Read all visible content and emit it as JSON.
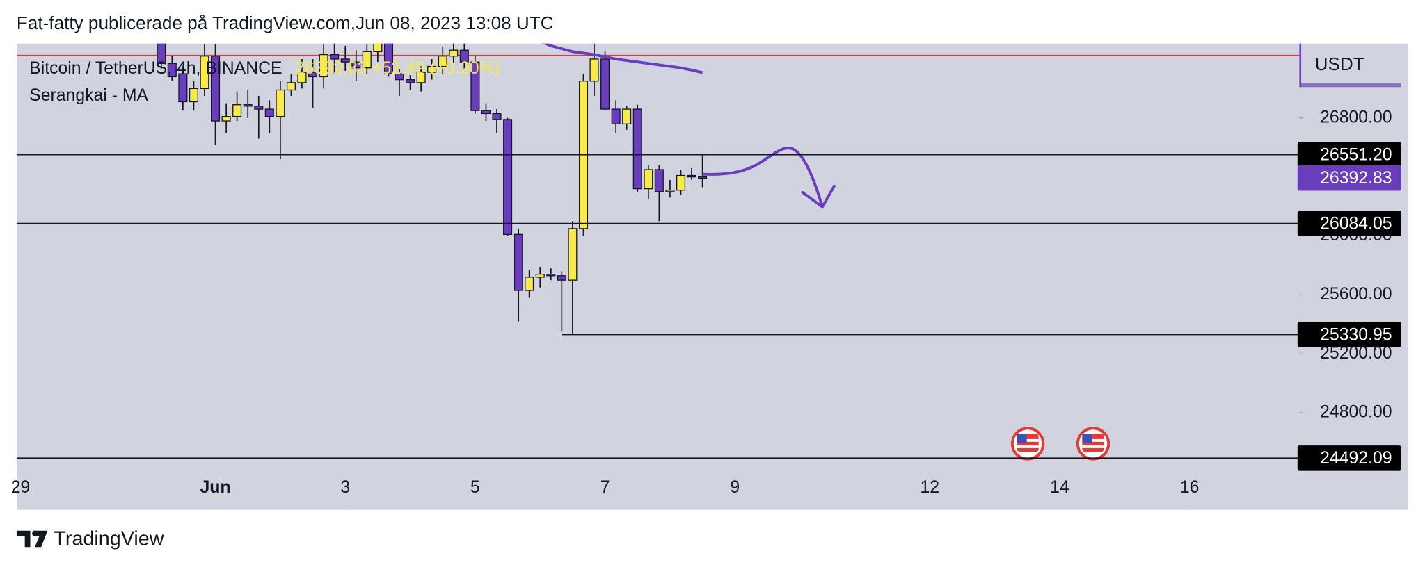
{
  "chart_data": {
    "type": "candlestick",
    "title": "Fat-fatty publicerade på TradingView.com,Jun 08, 2023 13:08 UTC",
    "symbol": "Bitcoin / TetherUS, 4h, BINANCE",
    "ohlc_text": "26392.83 +52.49 (+0.20%)",
    "indicator": "Serangkai - MA",
    "currency": "USDT",
    "footer": "TradingView",
    "x": [
      0.167,
      0.333,
      0.5,
      0.667,
      0.833,
      1,
      1.167,
      1.333,
      1.5,
      1.667,
      1.833,
      2,
      2.167,
      2.333,
      2.5,
      2.667,
      2.833,
      3,
      3.167,
      3.333,
      3.5,
      3.667,
      3.833,
      4,
      4.167,
      4.333,
      4.5,
      4.667,
      4.833,
      5,
      5.167,
      5.333,
      5.5,
      5.667,
      5.833,
      6,
      6.167,
      6.333,
      6.5,
      6.667,
      6.833,
      7,
      7.167,
      7.333,
      7.5,
      7.667,
      7.833,
      8,
      8.167,
      8.333,
      8.5
    ],
    "open": [
      27350,
      27170,
      27100,
      26910,
      27000,
      27220,
      26780,
      26810,
      26890,
      26880,
      26860,
      26810,
      26990,
      27040,
      27110,
      27080,
      27230,
      27200,
      27180,
      27140,
      27250,
      27330,
      27100,
      27060,
      27040,
      27110,
      27150,
      27220,
      27260,
      27180,
      26850,
      26830,
      26790,
      26010,
      25630,
      25720,
      25740,
      25730,
      25700,
      26050,
      27050,
      27200,
      26860,
      26760,
      26860,
      26320,
      26450,
      26300,
      26310,
      26410,
      26400
    ],
    "high": [
      27450,
      27220,
      27150,
      27050,
      27300,
      27300,
      26900,
      26980,
      26990,
      26950,
      26920,
      27050,
      27100,
      27200,
      27200,
      27300,
      27320,
      27290,
      27260,
      27300,
      27400,
      27380,
      27130,
      27090,
      27150,
      27200,
      27280,
      27350,
      27320,
      27220,
      26900,
      26860,
      26800,
      26050,
      25770,
      25790,
      25780,
      25760,
      26100,
      27100,
      27400,
      27250,
      26920,
      26880,
      26890,
      26480,
      26480,
      26380,
      26450,
      26460,
      26550
    ],
    "low": [
      27130,
      27050,
      26850,
      26850,
      26950,
      26620,
      26700,
      26780,
      26800,
      26660,
      26700,
      26520,
      26950,
      27000,
      26870,
      27000,
      27100,
      27120,
      27050,
      27100,
      27180,
      27080,
      26950,
      26990,
      26980,
      27060,
      27100,
      27150,
      27130,
      26830,
      26780,
      26700,
      26000,
      25420,
      25580,
      25650,
      25700,
      25350,
      25331,
      26000,
      26950,
      26850,
      26700,
      26720,
      26300,
      26250,
      26100,
      26260,
      26280,
      26380,
      26330
    ],
    "close": [
      27170,
      27080,
      26910,
      27000,
      27220,
      26780,
      26810,
      26890,
      26880,
      26860,
      26810,
      26990,
      27040,
      27110,
      27080,
      27230,
      27200,
      27180,
      27140,
      27250,
      27330,
      27100,
      27060,
      27040,
      27110,
      27150,
      27220,
      27260,
      27180,
      26850,
      26830,
      26790,
      26010,
      25630,
      25720,
      25740,
      25730,
      25700,
      26050,
      27050,
      27200,
      26860,
      26760,
      26860,
      26320,
      26450,
      26300,
      26310,
      26410,
      26400,
      26393
    ],
    "up_color": "#f8ea4a",
    "down_color": "#6a3dbf",
    "ma": {
      "name": "Serangkai - MA",
      "color": "#6a3dbf",
      "values": [
        null,
        null,
        null,
        null,
        null,
        null,
        null,
        null,
        null,
        null,
        null,
        null,
        null,
        null,
        null,
        null,
        null,
        null,
        null,
        null,
        null,
        null,
        null,
        null,
        null,
        null,
        null,
        null,
        null,
        null,
        null,
        null,
        null,
        null,
        null,
        27320,
        27290,
        27270,
        27250,
        27240,
        27230,
        27215,
        27200,
        27190,
        27180,
        27170,
        27160,
        27150,
        27140,
        27125,
        27108
      ]
    },
    "levels": {
      "values": [
        26551.2,
        26084.05,
        25330.95,
        24492.09
      ],
      "value_labels": [
        "26551.20",
        "26084.05",
        "25330.95",
        "24492.09"
      ],
      "x_from": [
        -2.06,
        -2.06,
        6.333,
        -2.06
      ]
    },
    "last_price": {
      "value": 26392.83,
      "label": "26392.83"
    },
    "xlim": [
      -2.06,
      17.69
    ],
    "ylim": [
      24400,
      27305
    ],
    "xticks": [
      {
        "value": -2,
        "label": "29"
      },
      {
        "value": 1,
        "label": "Jun"
      },
      3,
      5,
      7,
      9,
      12,
      14,
      16
    ],
    "yticks": [
      {
        "value": 26800,
        "label": "26800.00"
      },
      {
        "value": 26000,
        "label": "26000.00"
      },
      {
        "value": 25600,
        "label": "25600.00"
      },
      {
        "value": 25200,
        "label": "25200.00"
      },
      {
        "value": 24800,
        "label": "24800.00"
      }
    ]
  }
}
